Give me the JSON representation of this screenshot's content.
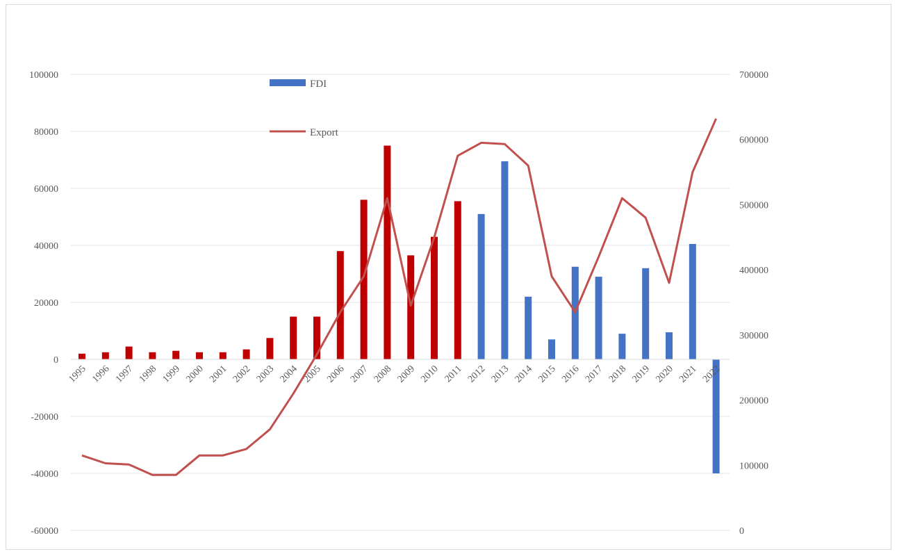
{
  "chart_data": {
    "type": "bar+line",
    "categories": [
      "1995",
      "1996",
      "1997",
      "1998",
      "1999",
      "2000",
      "2001",
      "2002",
      "2003",
      "2004",
      "2005",
      "2006",
      "2007",
      "2008",
      "2009",
      "2010",
      "2011",
      "2012",
      "2013",
      "2014",
      "2015",
      "2016",
      "2017",
      "2018",
      "2019",
      "2020",
      "2021",
      "2022"
    ],
    "series": [
      {
        "name": "FDI",
        "chart_type": "bar",
        "axis": "left",
        "values": [
          2000,
          2500,
          4500,
          2500,
          3000,
          2500,
          2500,
          3500,
          7500,
          15000,
          15000,
          38000,
          56000,
          75000,
          36500,
          43000,
          55500,
          51000,
          69500,
          22000,
          7000,
          32500,
          29000,
          9000,
          32000,
          9500,
          40500,
          -40000
        ],
        "bar_colors": [
          "#c00000",
          "#c00000",
          "#c00000",
          "#c00000",
          "#c00000",
          "#c00000",
          "#c00000",
          "#c00000",
          "#c00000",
          "#c00000",
          "#c00000",
          "#c00000",
          "#c00000",
          "#c00000",
          "#c00000",
          "#c00000",
          "#c00000",
          "#4472c4",
          "#4472c4",
          "#4472c4",
          "#4472c4",
          "#4472c4",
          "#4472c4",
          "#4472c4",
          "#4472c4",
          "#4472c4",
          "#4472c4",
          "#4472c4"
        ]
      },
      {
        "name": "Export",
        "chart_type": "line",
        "axis": "right",
        "color": "#c0504d",
        "values": [
          115000,
          103000,
          101000,
          85000,
          85000,
          115000,
          115000,
          125000,
          155000,
          210000,
          270000,
          335000,
          390000,
          510000,
          345000,
          450000,
          575000,
          595000,
          593000,
          560000,
          390000,
          335000,
          420000,
          510000,
          480000,
          380000,
          550000,
          632000
        ]
      }
    ],
    "y_left": {
      "min": -60000,
      "max": 100000,
      "ticks": [
        -60000,
        -40000,
        -20000,
        0,
        20000,
        40000,
        60000,
        80000,
        100000
      ]
    },
    "y_right": {
      "min": 0,
      "max": 700000,
      "ticks": [
        0,
        100000,
        200000,
        300000,
        400000,
        500000,
        600000,
        700000
      ]
    },
    "gridlines": true,
    "legend_position": "top-center",
    "legend": [
      {
        "label": "FDI",
        "color": "#4472c4",
        "marker": "bar"
      },
      {
        "label": "Export",
        "color": "#c0504d",
        "marker": "line"
      }
    ],
    "title": "",
    "xlabel": "",
    "ylabel": ""
  }
}
